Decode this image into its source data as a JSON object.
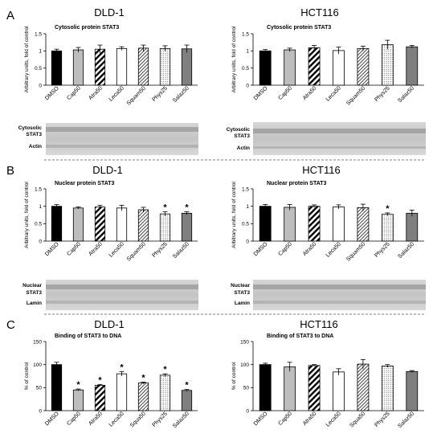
{
  "figure": {
    "panels": [
      {
        "letter": "A",
        "row_title": "Cytosolic protein STAT3"
      },
      {
        "letter": "B",
        "row_title": "Nuclear protein STAT3"
      },
      {
        "letter": "C",
        "row_title": "Binding of STAT3 to DNA"
      }
    ],
    "cell_lines": [
      "DLD-1",
      "HCT116"
    ],
    "bar_styles": [
      {
        "fill": "#000000",
        "pattern": "solid"
      },
      {
        "fill": "#bdbdbd",
        "pattern": "solid"
      },
      {
        "fill": "#ffffff",
        "pattern": "diagonal-heavy"
      },
      {
        "fill": "#ffffff",
        "pattern": "solid"
      },
      {
        "fill": "#ffffff",
        "pattern": "diagonal-light"
      },
      {
        "fill": "#ffffff",
        "pattern": "dots"
      },
      {
        "fill": "#7f7f7f",
        "pattern": "solid"
      }
    ],
    "blots": {
      "A": [
        {
          "labels": [
            "Cytosolic",
            "STAT3"
          ]
        },
        {
          "labels": [
            "Actin"
          ]
        }
      ],
      "B": [
        {
          "labels": [
            "Nuclear",
            "STAT3"
          ]
        },
        {
          "labels": [
            "Lamin"
          ]
        }
      ]
    }
  },
  "chart_data": [
    {
      "type": "bar",
      "panel": "A",
      "cell_line": "DLD-1",
      "title": "Cytosolic protein STAT3",
      "ylabel": "Arbitrary units, fold of control",
      "ylim": [
        0,
        1.5
      ],
      "yticks": [
        "0",
        "0.5",
        "1",
        "1.5"
      ],
      "categories": [
        "DMSO",
        "Cap50",
        "Atra50",
        "Leca50",
        "Squam50",
        "Phys25",
        "Salaz50"
      ],
      "values": [
        1.0,
        1.03,
        1.05,
        1.07,
        1.08,
        1.07,
        1.06
      ],
      "errors": [
        0.05,
        0.07,
        0.12,
        0.05,
        0.09,
        0.08,
        0.11
      ],
      "significant": [
        false,
        false,
        false,
        false,
        false,
        false,
        false
      ]
    },
    {
      "type": "bar",
      "panel": "A",
      "cell_line": "HCT116",
      "title": "Cytosolic protein STAT3",
      "ylabel": "Arbitrary units, fold of control",
      "ylim": [
        0,
        1.5
      ],
      "yticks": [
        "0",
        "0.5",
        "1",
        "1.5"
      ],
      "categories": [
        "DMSO",
        "Cap50",
        "Atra50",
        "Leca50",
        "Squam50",
        "Phys25",
        "Salaz50"
      ],
      "values": [
        1.0,
        1.03,
        1.09,
        1.01,
        1.07,
        1.18,
        1.12
      ],
      "errors": [
        0.04,
        0.05,
        0.07,
        0.1,
        0.07,
        0.13,
        0.04
      ],
      "significant": [
        false,
        false,
        false,
        false,
        false,
        false,
        false
      ]
    },
    {
      "type": "bar",
      "panel": "B",
      "cell_line": "DLD-1",
      "title": "Nuclear protein STAT3",
      "ylabel": "Arbitrary units, fold of control",
      "ylim": [
        0,
        1.5
      ],
      "yticks": [
        "0",
        "0.5",
        "1",
        "1.5"
      ],
      "categories": [
        "DMSO",
        "Cap50",
        "Atra50",
        "Leca50",
        "Squam50",
        "Phys25",
        "Salaz50"
      ],
      "values": [
        1.0,
        0.95,
        0.98,
        0.95,
        0.9,
        0.78,
        0.8
      ],
      "errors": [
        0.05,
        0.03,
        0.05,
        0.08,
        0.07,
        0.06,
        0.04
      ],
      "significant": [
        false,
        false,
        false,
        false,
        false,
        true,
        true
      ]
    },
    {
      "type": "bar",
      "panel": "B",
      "cell_line": "HCT116",
      "title": "Nuclear protein STAT3",
      "ylabel": "Arbitrary units, fold of control",
      "ylim": [
        0,
        1.5
      ],
      "yticks": [
        "0",
        "0.5",
        "1",
        "1.5"
      ],
      "categories": [
        "DMSO",
        "Cap50",
        "Atra50",
        "Leca50",
        "Squam50",
        "Phys25",
        "Salaz50"
      ],
      "values": [
        1.0,
        0.97,
        1.0,
        0.98,
        0.96,
        0.77,
        0.8
      ],
      "errors": [
        0.05,
        0.08,
        0.04,
        0.06,
        0.1,
        0.04,
        0.09
      ],
      "significant": [
        false,
        false,
        false,
        false,
        false,
        true,
        false
      ]
    },
    {
      "type": "bar",
      "panel": "C",
      "cell_line": "DLD-1",
      "title": "Binding of STAT3 to DNA",
      "ylabel": "% of control",
      "ylim": [
        0,
        150
      ],
      "yticks": [
        "0",
        "50",
        "100",
        "150"
      ],
      "categories": [
        "DMSO",
        "Cap50",
        "Atra50",
        "Leca50",
        "Squa50",
        "Phys25",
        "Salaz50"
      ],
      "values": [
        100,
        45,
        55,
        80,
        60,
        77,
        44
      ],
      "errors": [
        5,
        2,
        2,
        5,
        2,
        3,
        2
      ],
      "significant": [
        false,
        true,
        true,
        true,
        true,
        true,
        true
      ]
    },
    {
      "type": "bar",
      "panel": "C",
      "cell_line": "HCT116",
      "title": "Binding of STAT3 to DNA",
      "ylabel": "% of control",
      "ylim": [
        0,
        150
      ],
      "yticks": [
        "0",
        "50",
        "100",
        "150"
      ],
      "categories": [
        "DMSO",
        "Cap50",
        "Atra50",
        "Leca50",
        "Squa50",
        "Phys25",
        "Salaz50"
      ],
      "values": [
        100,
        95,
        98,
        84,
        101,
        97,
        85
      ],
      "errors": [
        3,
        10,
        2,
        7,
        10,
        3,
        2
      ],
      "significant": [
        false,
        false,
        false,
        false,
        false,
        false,
        false
      ]
    }
  ]
}
